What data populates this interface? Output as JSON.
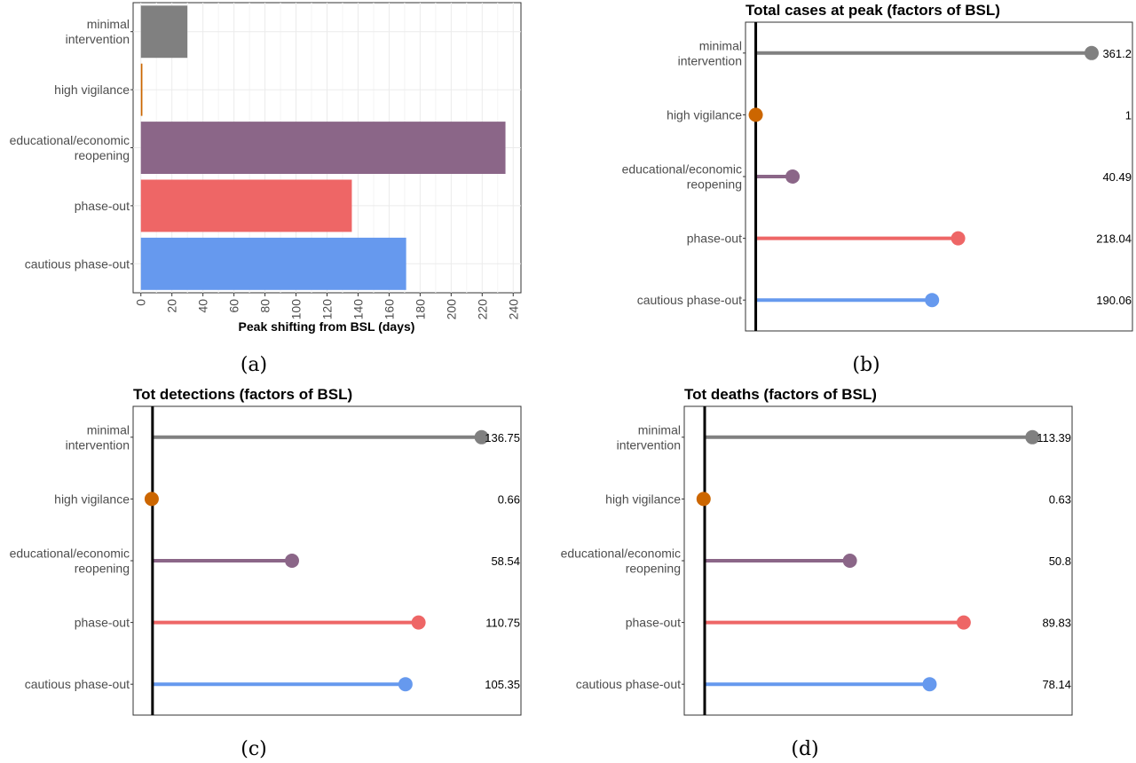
{
  "colors": {
    "minimal_intervention": "#808080",
    "high_vigilance": "#CC6600",
    "educational_economic_reopening": "#8B6688",
    "phase_out": "#EE6666",
    "cautious_phase_out": "#6699EE"
  },
  "chart_data": [
    {
      "type": "bar",
      "orientation": "horizontal",
      "caption": "(a)",
      "title": "",
      "xlabel": "Peak shifting from BSL (days)",
      "ylabel": "",
      "categories": [
        "minimal intervention",
        "high vigilance",
        "educational/economic reopening",
        "phase-out",
        "cautious phase-out"
      ],
      "category_lines": [
        [
          "minimal",
          "intervention"
        ],
        [
          "high vigilance"
        ],
        [
          "educational/economic",
          "reopening"
        ],
        [
          "phase-out"
        ],
        [
          "cautious phase-out"
        ]
      ],
      "values": [
        30,
        1,
        235,
        136,
        171
      ],
      "xlim": [
        -5,
        245
      ],
      "xticks": [
        0,
        20,
        40,
        60,
        80,
        100,
        120,
        140,
        160,
        180,
        200,
        220,
        240
      ],
      "xtick_labels": [
        "0",
        "20",
        "40",
        "60",
        "80",
        "100",
        "120",
        "140",
        "160",
        "180",
        "200",
        "220",
        "240"
      ],
      "grid": true,
      "legend": "none"
    },
    {
      "type": "lollipop",
      "caption": "(b)",
      "title": "Total cases at peak (factors of BSL)",
      "xlabel": "",
      "ylabel": "",
      "categories": [
        "minimal intervention",
        "high vigilance",
        "educational/economic reopening",
        "phase-out",
        "cautious phase-out"
      ],
      "category_lines": [
        [
          "minimal",
          "intervention"
        ],
        [
          "high vigilance"
        ],
        [
          "educational/economic",
          "reopening"
        ],
        [
          "phase-out"
        ],
        [
          "cautious phase-out"
        ]
      ],
      "values": [
        361.2,
        1,
        40.49,
        218.04,
        190.06
      ],
      "value_labels": [
        "361.2",
        "1",
        "40.49",
        "218.04",
        "190.06"
      ],
      "baseline": 1,
      "xlim": [
        -10,
        405
      ],
      "grid": false,
      "legend": "none"
    },
    {
      "type": "lollipop",
      "caption": "(c)",
      "title": "Tot detections (factors of BSL)",
      "xlabel": "",
      "ylabel": "",
      "categories": [
        "minimal intervention",
        "high vigilance",
        "educational/economic reopening",
        "phase-out",
        "cautious phase-out"
      ],
      "category_lines": [
        [
          "minimal",
          "intervention"
        ],
        [
          "high vigilance"
        ],
        [
          "educational/economic",
          "reopening"
        ],
        [
          "phase-out"
        ],
        [
          "cautious phase-out"
        ]
      ],
      "values": [
        136.75,
        0.66,
        58.54,
        110.75,
        105.35
      ],
      "value_labels": [
        "136.75",
        "0.66",
        "58.54",
        "110.75",
        "105.35"
      ],
      "baseline": 1,
      "xlim": [
        -7,
        153
      ],
      "grid": false,
      "legend": "none"
    },
    {
      "type": "lollipop",
      "caption": "(d)",
      "title": "Tot deaths (factors of BSL)",
      "xlabel": "",
      "ylabel": "",
      "categories": [
        "minimal intervention",
        "high vigilance",
        "educational/economic reopening",
        "phase-out",
        "cautious phase-out"
      ],
      "category_lines": [
        [
          "minimal",
          "intervention"
        ],
        [
          "high vigilance"
        ],
        [
          "educational/economic",
          "reopening"
        ],
        [
          "phase-out"
        ],
        [
          "cautious phase-out"
        ]
      ],
      "values": [
        113.39,
        0.63,
        50.8,
        89.83,
        78.14
      ],
      "value_labels": [
        "113.39",
        "0.63",
        "50.8",
        "89.83",
        "78.14"
      ],
      "baseline": 1,
      "xlim": [
        -6,
        127
      ],
      "grid": false,
      "legend": "none"
    }
  ]
}
